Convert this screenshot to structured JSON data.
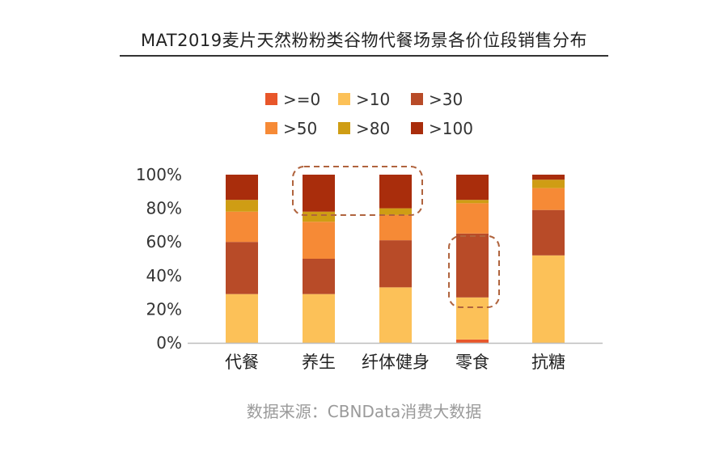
{
  "title": "MAT2019麦片天然粉粉类谷物代餐场景各价位段销售分布",
  "source": "数据来源：CBNData消费大数据",
  "chart_data": {
    "type": "bar",
    "stacked": true,
    "categories": [
      "代餐",
      "养生",
      "纤体健身",
      "零食",
      "抗糖"
    ],
    "series": [
      {
        "name": ">=0",
        "color": "#e8562a",
        "values": [
          0,
          0,
          0,
          2,
          0
        ]
      },
      {
        "name": ">10",
        "color": "#fcc158",
        "values": [
          29,
          29,
          33,
          25,
          52
        ]
      },
      {
        "name": ">30",
        "color": "#b84b28",
        "values": [
          31,
          21,
          28,
          38,
          27
        ]
      },
      {
        "name": ">50",
        "color": "#f68a36",
        "values": [
          18,
          22,
          15,
          18,
          13
        ]
      },
      {
        "name": ">80",
        "color": "#cf9d14",
        "values": [
          7,
          6,
          4,
          2,
          5
        ]
      },
      {
        "name": ">100",
        "color": "#a92d0c",
        "values": [
          15,
          22,
          20,
          15,
          3
        ]
      }
    ],
    "yticks": [
      "0%",
      "20%",
      "40%",
      "60%",
      "80%",
      "100%"
    ],
    "ylim": [
      0,
      100
    ],
    "legend_position": "top",
    "grid": false
  }
}
